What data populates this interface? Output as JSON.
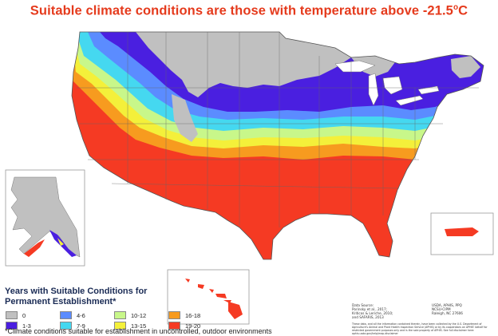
{
  "title": {
    "text": "Suitable climate conditions are those with temperature above -21.5",
    "superscript": "o",
    "unit": "C"
  },
  "legend": {
    "title_line1": "Years with Suitable Conditions for",
    "title_line2": "Permanent Establishment*",
    "items": [
      {
        "label": "0",
        "color": "#c0c0c0"
      },
      {
        "label": "1-3",
        "color": "#4a1fe0"
      },
      {
        "label": "4-6",
        "color": "#5b8cff"
      },
      {
        "label": "7-9",
        "color": "#45d8f0"
      },
      {
        "label": "10-12",
        "color": "#c8f78a"
      },
      {
        "label": "13-15",
        "color": "#f4f03a"
      },
      {
        "label": "16-18",
        "color": "#f79b1f"
      },
      {
        "label": "19-20",
        "color": "#f53a23"
      }
    ]
  },
  "footnote": "*Climate conditions suitable for establishment in uncontrolled, outdoor environments",
  "source_left": "Data Source:\nPorinsky et al., 2017;\nKriticos & Leriche, 2010;\nand SAFARIS, 2013",
  "source_right": "USDA, APHIS, PPQ\nNCSU-CIPM\nRaleigh, NC 27606",
  "disclaimer": "These data, and all the information contained therein, have been collected by the U.S. Department of Agriculture's Animal and Plant Health Inspection Service (APHIS) or by its cooperators on APHIS' behalf for restricted government purposes only and is the sole property of APHIS. See full disclaimer here: aphis.usda.gov/help/map-disclaimer"
}
